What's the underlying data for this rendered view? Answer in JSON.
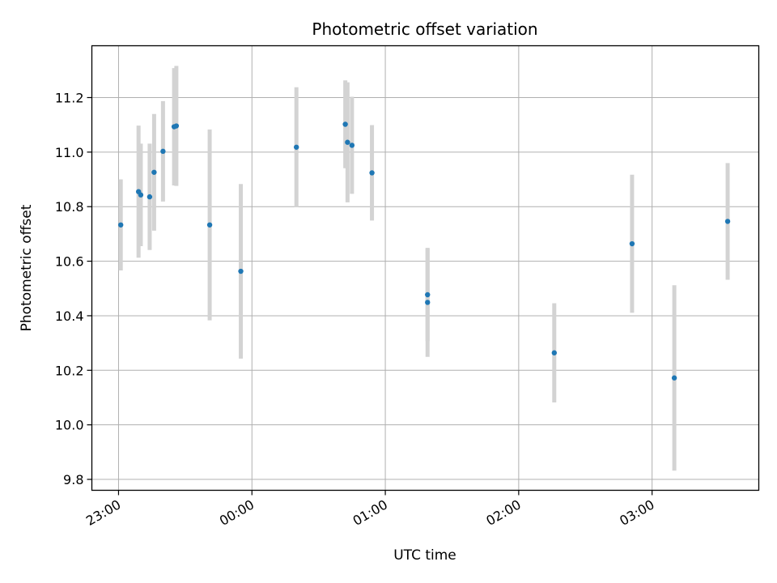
{
  "chart_data": {
    "type": "scatter",
    "title": "Photometric offset variation",
    "xlabel": "UTC time",
    "ylabel": "Photometric offset",
    "grid": true,
    "legend": "none",
    "x_unit": "UTC time (HH:MM, observation night)",
    "xlim": [
      "22:48",
      "03:48"
    ],
    "ylim": [
      9.76,
      11.39
    ],
    "x_ticks": [
      "23:00",
      "00:00",
      "01:00",
      "02:00",
      "03:00"
    ],
    "y_ticks": [
      9.8,
      10.0,
      10.2,
      10.4,
      10.6,
      10.8,
      11.0,
      11.2
    ],
    "y_tick_labels": [
      "9.8",
      "10.0",
      "10.2",
      "10.4",
      "10.6",
      "10.8",
      "11.0",
      "11.2"
    ],
    "colors": {
      "points": "#1f77b4",
      "errorbars": "#d3d3d3",
      "grid": "#b0b0b0"
    },
    "points": [
      {
        "x": "23:01",
        "y": 10.733,
        "err": 0.167
      },
      {
        "x": "23:09",
        "y": 10.855,
        "err": 0.242
      },
      {
        "x": "23:10",
        "y": 10.843,
        "err": 0.188
      },
      {
        "x": "23:14",
        "y": 10.836,
        "err": 0.195
      },
      {
        "x": "23:16",
        "y": 10.926,
        "err": 0.214
      },
      {
        "x": "23:20",
        "y": 11.003,
        "err": 0.184
      },
      {
        "x": "23:25",
        "y": 11.093,
        "err": 0.215
      },
      {
        "x": "23:26",
        "y": 11.096,
        "err": 0.22
      },
      {
        "x": "23:41",
        "y": 10.733,
        "err": 0.35
      },
      {
        "x": "23:55",
        "y": 10.563,
        "err": 0.32
      },
      {
        "x": "00:20",
        "y": 11.018,
        "err": 0.22
      },
      {
        "x": "00:42",
        "y": 11.102,
        "err": 0.161
      },
      {
        "x": "00:43",
        "y": 11.036,
        "err": 0.22
      },
      {
        "x": "00:45",
        "y": 11.025,
        "err": 0.178
      },
      {
        "x": "00:54",
        "y": 10.924,
        "err": 0.175
      },
      {
        "x": "01:19",
        "y": 10.477,
        "err": 0.17
      },
      {
        "x": "01:19",
        "y": 10.449,
        "err": 0.2
      },
      {
        "x": "02:16",
        "y": 10.264,
        "err": 0.182
      },
      {
        "x": "02:51",
        "y": 10.664,
        "err": 0.253
      },
      {
        "x": "03:10",
        "y": 10.172,
        "err": 0.34
      },
      {
        "x": "03:34",
        "y": 10.746,
        "err": 0.214
      }
    ]
  }
}
